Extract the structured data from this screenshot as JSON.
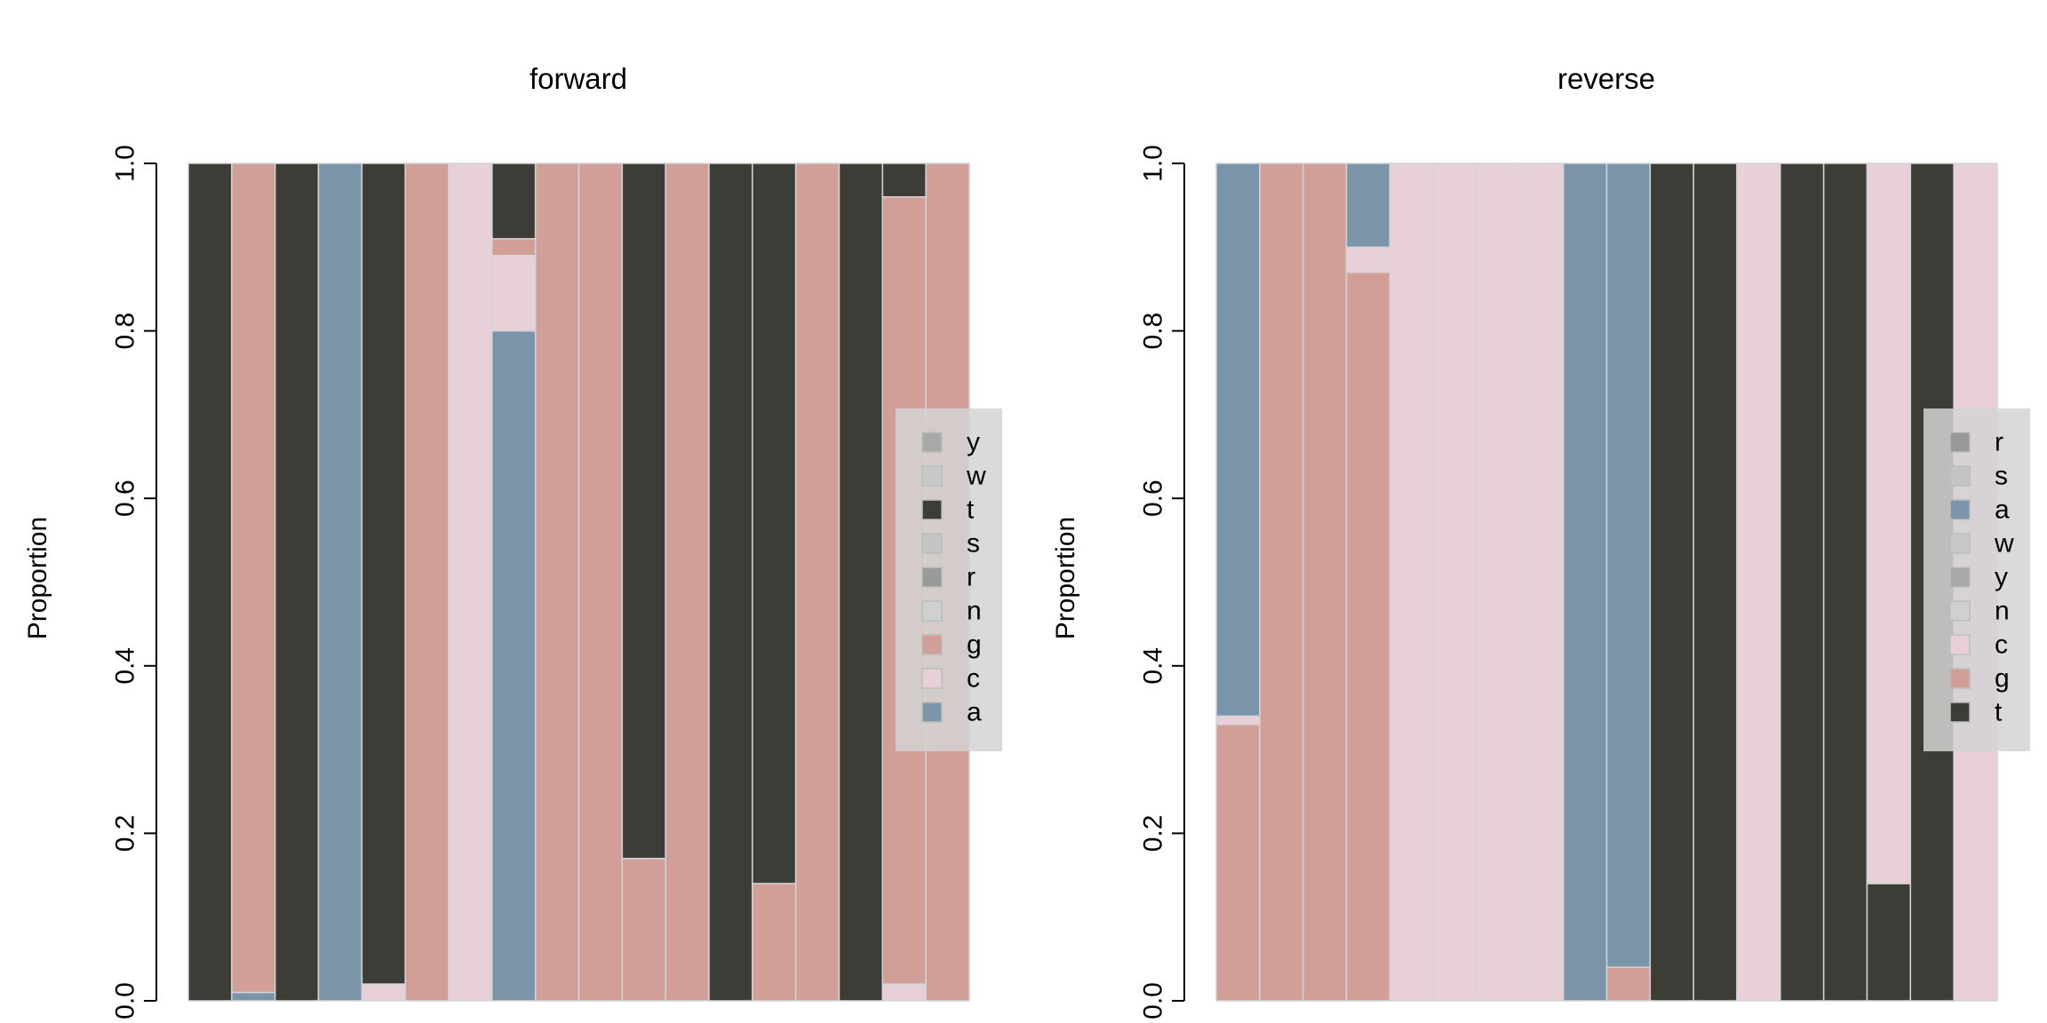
{
  "colors": {
    "a": "#7a95aa",
    "c": "#e8d0d8",
    "g": "#d19e98",
    "t": "#3d3d38",
    "n": "#d0d0d0",
    "r": "#999999",
    "s": "#c4c4c4",
    "w": "#c8c8c8",
    "y": "#a8a8a8",
    "bar_border": "#d4d4d4",
    "legend_bg": "#d3d3d3"
  },
  "chart_data": [
    {
      "type": "bar",
      "stacked": true,
      "title": "forward",
      "ylabel": "Proportion",
      "ylim": [
        0,
        1
      ],
      "yticks": [
        "0.0",
        "0.2",
        "0.4",
        "0.6",
        "0.8",
        "1.0"
      ],
      "legend": [
        "y",
        "w",
        "t",
        "s",
        "r",
        "n",
        "g",
        "c",
        "a"
      ],
      "legend_placement": "right",
      "stack_order": [
        "a",
        "c",
        "g",
        "n",
        "r",
        "s",
        "t",
        "w",
        "y"
      ],
      "positions": [
        {
          "t": 1.0
        },
        {
          "a": 0.01,
          "g": 0.99
        },
        {
          "t": 1.0
        },
        {
          "a": 1.0
        },
        {
          "c": 0.02,
          "t": 0.98
        },
        {
          "g": 1.0
        },
        {
          "c": 1.0
        },
        {
          "a": 0.8,
          "c": 0.09,
          "g": 0.02,
          "t": 0.09
        },
        {
          "g": 1.0
        },
        {
          "g": 1.0
        },
        {
          "g": 0.17,
          "t": 0.83
        },
        {
          "g": 1.0
        },
        {
          "t": 1.0
        },
        {
          "g": 0.14,
          "t": 0.86
        },
        {
          "g": 1.0
        },
        {
          "t": 1.0
        },
        {
          "c": 0.02,
          "g": 0.94,
          "t": 0.04
        },
        {
          "g": 1.0
        }
      ]
    },
    {
      "type": "bar",
      "stacked": true,
      "title": "reverse",
      "ylabel": "Proportion",
      "ylim": [
        0,
        1
      ],
      "yticks": [
        "0.0",
        "0.2",
        "0.4",
        "0.6",
        "0.8",
        "1.0"
      ],
      "legend": [
        "r",
        "s",
        "a",
        "w",
        "y",
        "n",
        "c",
        "g",
        "t"
      ],
      "legend_placement": "right",
      "stack_order": [
        "t",
        "g",
        "c",
        "n",
        "y",
        "w",
        "a",
        "s",
        "r"
      ],
      "positions": [
        {
          "g": 0.33,
          "c": 0.01,
          "a": 0.66
        },
        {
          "g": 1.0
        },
        {
          "g": 1.0
        },
        {
          "g": 0.87,
          "c": 0.03,
          "a": 0.1
        },
        {
          "c": 1.0
        },
        {
          "c": 1.0
        },
        {
          "c": 1.0
        },
        {
          "c": 1.0
        },
        {
          "a": 1.0
        },
        {
          "g": 0.04,
          "a": 0.96
        },
        {
          "t": 1.0
        },
        {
          "t": 1.0
        },
        {
          "c": 1.0
        },
        {
          "t": 1.0
        },
        {
          "t": 1.0
        },
        {
          "t": 0.14,
          "c": 0.86
        },
        {
          "t": 1.0
        },
        {
          "c": 1.0
        }
      ]
    }
  ]
}
